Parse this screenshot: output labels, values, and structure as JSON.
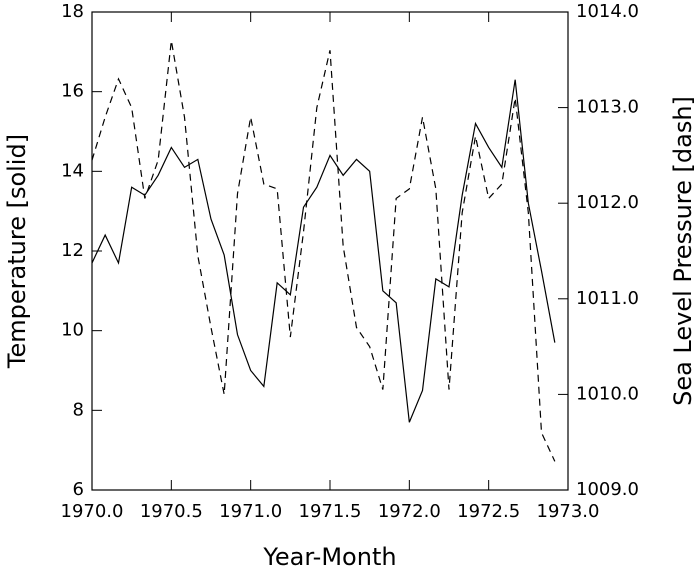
{
  "chart_data": {
    "type": "line",
    "xlabel": "Year-Month",
    "ylabel": "Temperature  [solid]",
    "y2label": "Sea Level Pressure  [dash]",
    "x": [
      1970,
      1970.083,
      1970.167,
      1970.25,
      1970.333,
      1970.417,
      1970.5,
      1970.583,
      1970.667,
      1970.75,
      1970.833,
      1970.917,
      1971,
      1971.083,
      1971.167,
      1971.25,
      1971.333,
      1971.417,
      1971.5,
      1971.583,
      1971.667,
      1971.75,
      1971.833,
      1971.917,
      1972,
      1972.083,
      1972.167,
      1972.25,
      1972.333,
      1972.417,
      1972.5,
      1972.583,
      1972.667,
      1972.75,
      1972.833,
      1972.917
    ],
    "series": [
      {
        "color": "#000000",
        "dash": "solid",
        "axis": "y",
        "values": [
          11.7,
          12.4,
          11.7,
          13.6,
          13.4,
          13.9,
          14.6,
          14.1,
          14.3,
          12.8,
          11.9,
          9.9,
          9.0,
          8.6,
          11.2,
          10.9,
          13.1,
          13.6,
          14.4,
          13.9,
          14.3,
          14.0,
          11.0,
          10.7,
          7.7,
          8.5,
          11.3,
          11.1,
          13.4,
          15.2,
          14.6,
          14.1,
          16.3,
          13.2,
          11.5,
          9.7
        ]
      },
      {
        "color": "#000000",
        "dash": "dashed",
        "axis": "y2",
        "values": [
          1012.45,
          1012.9,
          1013.3,
          1013.0,
          1012.05,
          1012.45,
          1013.7,
          1012.9,
          1011.45,
          1010.7,
          1010.0,
          1012.1,
          1012.9,
          1012.2,
          1012.15,
          1010.6,
          1011.7,
          1013.0,
          1013.6,
          1011.55,
          1010.7,
          1010.5,
          1010.05,
          1012.05,
          1012.15,
          1012.9,
          1012.15,
          1010.05,
          1011.9,
          1012.7,
          1012.05,
          1012.2,
          1013.1,
          1011.9,
          1009.6,
          1009.3
        ]
      }
    ],
    "xlim": [
      1970,
      1973
    ],
    "xticks": [
      {
        "value": 1970,
        "label": "1970.0"
      },
      {
        "value": 1970.5,
        "label": "1970.5"
      },
      {
        "value": 1971,
        "label": "1971.0"
      },
      {
        "value": 1971.5,
        "label": "1971.5"
      },
      {
        "value": 1972,
        "label": "1972.0"
      },
      {
        "value": 1972.5,
        "label": "1972.5"
      },
      {
        "value": 1973,
        "label": "1973.0"
      }
    ],
    "ylim": [
      6,
      18
    ],
    "yticks": [
      6,
      8,
      10,
      12,
      14,
      16,
      18
    ],
    "y2lim": [
      1009,
      1014
    ],
    "y2ticks": [
      {
        "value": 1009,
        "label": "1009.0"
      },
      {
        "value": 1010,
        "label": "1010.0"
      },
      {
        "value": 1011,
        "label": "1011.0"
      },
      {
        "value": 1012,
        "label": "1012.0"
      },
      {
        "value": 1013,
        "label": "1013.0"
      },
      {
        "value": 1014,
        "label": "1014.0"
      }
    ],
    "grid": false
  }
}
